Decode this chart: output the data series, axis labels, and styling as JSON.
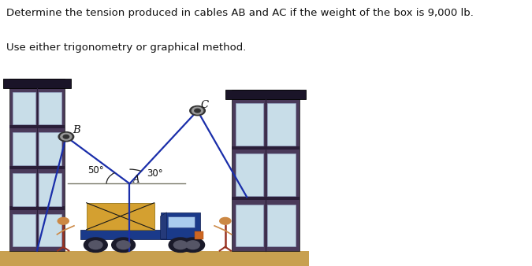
{
  "title_line1": "Determine the tension produced in cables AB and AC if the weight of the box is 9,000 lb.",
  "title_line2": "Use either trigonometry or graphical method.",
  "title_fontsize": 9.5,
  "title_color": "#111111",
  "bg_color": "#ffffff",
  "fig_width": 6.75,
  "fig_height": 3.38,
  "dpi": 100,
  "cable_color": "#1a2eaa",
  "cable_linewidth": 1.6,
  "label_B": "B",
  "label_C": "C",
  "label_A": "A",
  "label_50": "50°",
  "label_30": "30°",
  "annotation_fontsize": 8.5,
  "col_body_color": "#4a3a5a",
  "col_cap_color": "#1a1428",
  "col_floor_color": "#2a1e38",
  "win_color": "#c8dde8",
  "win_edge": "#99aacc",
  "ground_color": "#c8a050",
  "truck_body_color": "#1a3a8a",
  "truck_dark": "#0a1a4a",
  "truck_wheel_color": "#1a1a2a",
  "truck_wheel_inner": "#555566",
  "cargo_color": "#d4a030",
  "cargo_x_color": "#1a1a1a",
  "person_body": "#993322",
  "person_head": "#cc8844"
}
